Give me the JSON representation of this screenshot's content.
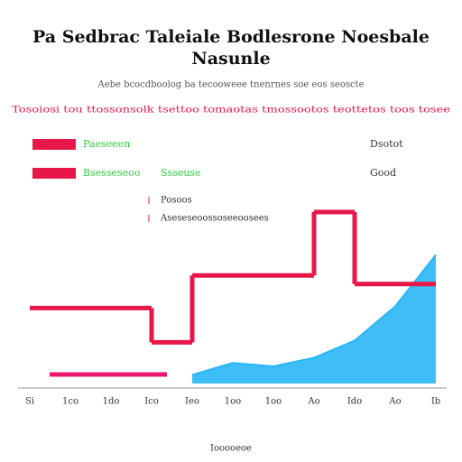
{
  "chart_data": {
    "type": "line",
    "title": "Pa Sedbrac Taleiale Bodlesrone Noesbale",
    "title_line2": "Nasunle",
    "subtitle": "Aebe bcocdboolog ba tecooweee tnenrnes soe eos seoscte",
    "highlight_text": "Tosoiosi tou ttossonsolk tsettoo tomaotas tmossootos teottetos toos tosee",
    "legend_labels": [
      "Paeseeen",
      "Bsesseseoo",
      "Ssseuse"
    ],
    "side_labels": [
      "Dsotot",
      "Good"
    ],
    "annotations": [
      "Posoos",
      "Aseseseoossoseeoosees"
    ],
    "x_label": "Iooooeoe",
    "categories": [
      "Si",
      "1co",
      "1do",
      "Ico",
      "Ieo",
      "1oo",
      "1oo",
      "Ao",
      "Ido",
      "Ao",
      "Ib"
    ],
    "ylim": [
      0,
      100
    ],
    "series": [
      {
        "name": "Paeseeen",
        "color": "#e8174a",
        "style": "step",
        "values": [
          44,
          44,
          44,
          24,
          63,
          63,
          63,
          100,
          58,
          58,
          null
        ]
      },
      {
        "name": "Bsesseseoo",
        "color": "#29b6f6",
        "style": "area",
        "values": [
          null,
          null,
          null,
          null,
          5,
          12,
          10,
          15,
          25,
          45,
          75
        ]
      }
    ]
  }
}
